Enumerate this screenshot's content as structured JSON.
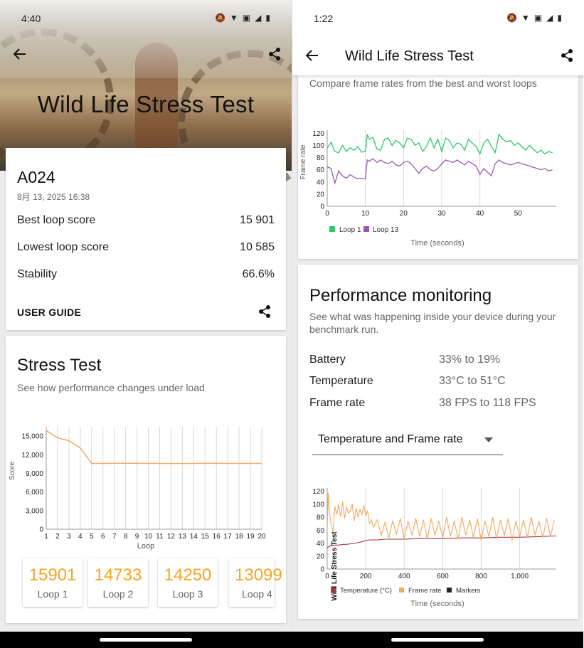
{
  "left": {
    "status_time": "4:40",
    "hero_title": "Wild Life Stress Test",
    "device": "A024",
    "date": "8月 13, 2025 16:38",
    "stats": [
      {
        "label": "Best loop score",
        "value": "15 901"
      },
      {
        "label": "Lowest loop score",
        "value": "10 585"
      },
      {
        "label": "Stability",
        "value": "66.6%"
      }
    ],
    "user_guide": "USER GUIDE",
    "stress_title": "Stress Test",
    "stress_sub": "See how performance changes under load",
    "loops": [
      {
        "value": "15901",
        "label": "Loop 1"
      },
      {
        "value": "14733",
        "label": "Loop 2"
      },
      {
        "value": "14250",
        "label": "Loop 3"
      },
      {
        "value": "13099",
        "label": "Loop 4"
      }
    ]
  },
  "right": {
    "status_time": "1:22",
    "title": "Wild Life Stress Test",
    "compare_sub": "Compare frame rates from the best and worst loops",
    "perf_title": "Performance monitoring",
    "perf_sub": "See what was happening inside your device during your benchmark run.",
    "perf_rows": [
      {
        "label": "Battery",
        "value": "33% to 19%"
      },
      {
        "label": "Temperature",
        "value": "33°C to 51°C"
      },
      {
        "label": "Frame rate",
        "value": "38 FPS to 118 FPS"
      }
    ],
    "dropdown_value": "Temperature and Frame rate"
  },
  "colors": {
    "accent": "#f5a623",
    "loop1": "#2ec866",
    "loop13": "#9b59b6",
    "temp": "#a0384a",
    "fps": "#f6a85e"
  },
  "chart_data": [
    {
      "type": "line",
      "title": "Stress Test",
      "xlabel": "Loop",
      "ylabel": "Score",
      "x": [
        1,
        2,
        3,
        4,
        5,
        6,
        7,
        8,
        9,
        10,
        11,
        12,
        13,
        14,
        15,
        16,
        17,
        18,
        19,
        20
      ],
      "series": [
        {
          "name": "Score",
          "values": [
            15901,
            14733,
            14250,
            13099,
            10585,
            10600,
            10610,
            10620,
            10610,
            10600,
            10600,
            10590,
            10590,
            10600,
            10610,
            10610,
            10600,
            10600,
            10600,
            10590
          ]
        }
      ],
      "yticks": [
        0,
        3000,
        6000,
        9000,
        12000,
        15000
      ],
      "ytick_labels": [
        "0",
        "3,000",
        "6,000",
        "9,000",
        "12,000",
        "15,000"
      ],
      "ylim": [
        0,
        16500
      ],
      "xlim": [
        1,
        20
      ]
    },
    {
      "type": "line",
      "title": "Compare frame rates from the best and worst loops",
      "xlabel": "Time (seconds)",
      "ylabel": "Frame rate",
      "xticks": [
        0,
        10,
        20,
        30,
        40,
        50
      ],
      "yticks": [
        0,
        20,
        40,
        60,
        80,
        100,
        120
      ],
      "xlim": [
        0,
        60
      ],
      "ylim": [
        0,
        125
      ],
      "markers": [
        10,
        20,
        30,
        40
      ],
      "series": [
        {
          "name": "Loop 1",
          "x": [
            0,
            1,
            2,
            3,
            4,
            5,
            6,
            7,
            8,
            9,
            10,
            10.5,
            11,
            12,
            13,
            14,
            15,
            16,
            17,
            18,
            19,
            20,
            21,
            22,
            23,
            24,
            25,
            26,
            27,
            28,
            29,
            30,
            31,
            32,
            33,
            34,
            35,
            36,
            37,
            38,
            39,
            40,
            41,
            42,
            43,
            44,
            45,
            46,
            47,
            48,
            49,
            50,
            51,
            52,
            53,
            54,
            55,
            56,
            57,
            58,
            59
          ],
          "values": [
            95,
            105,
            90,
            88,
            100,
            90,
            96,
            92,
            98,
            89,
            90,
            118,
            110,
            113,
            94,
            92,
            110,
            112,
            100,
            108,
            104,
            96,
            112,
            110,
            100,
            104,
            90,
            98,
            112,
            96,
            110,
            90,
            112,
            108,
            96,
            104,
            102,
            92,
            110,
            104,
            98,
            86,
            104,
            110,
            98,
            88,
            118,
            110,
            106,
            108,
            100,
            104,
            98,
            92,
            100,
            94,
            88,
            92,
            86,
            90,
            88
          ]
        },
        {
          "name": "Loop 13",
          "x": [
            0,
            1,
            2,
            3,
            4,
            5,
            6,
            7,
            8,
            9,
            10,
            10.5,
            11,
            12,
            13,
            14,
            15,
            16,
            17,
            18,
            19,
            20,
            21,
            22,
            23,
            24,
            25,
            26,
            27,
            28,
            29,
            30,
            31,
            32,
            33,
            34,
            35,
            36,
            37,
            38,
            39,
            40,
            41,
            42,
            43,
            44,
            45,
            46,
            47,
            48,
            49,
            50,
            51,
            52,
            53,
            54,
            55,
            56,
            57,
            58,
            59
          ],
          "values": [
            65,
            62,
            38,
            58,
            50,
            46,
            52,
            48,
            45,
            46,
            45,
            76,
            74,
            78,
            72,
            76,
            72,
            70,
            74,
            68,
            66,
            72,
            74,
            70,
            62,
            54,
            62,
            66,
            60,
            58,
            62,
            70,
            76,
            74,
            72,
            76,
            72,
            68,
            74,
            70,
            66,
            52,
            62,
            56,
            50,
            70,
            76,
            72,
            70,
            68,
            70,
            72,
            70,
            68,
            66,
            64,
            62,
            60,
            62,
            58,
            60
          ]
        }
      ]
    },
    {
      "type": "line",
      "title": "Temperature and Frame rate",
      "xlabel": "Time (seconds)",
      "xticks": [
        0,
        200,
        400,
        600,
        800,
        1000
      ],
      "xtick_labels": [
        "0",
        "200",
        "400",
        "600",
        "800",
        "1,000"
      ],
      "yticks": [
        0,
        20,
        40,
        60,
        80,
        100,
        120
      ],
      "xlim": [
        0,
        1190
      ],
      "ylim": [
        0,
        125
      ],
      "marker_label": "Wild Life Stress Test",
      "series": [
        {
          "name": "Temperature (°C)",
          "x": [
            0,
            20,
            40,
            60,
            80,
            100,
            150,
            180,
            200,
            220,
            260,
            300,
            400,
            500,
            600,
            700,
            800,
            900,
            1000,
            1100,
            1190
          ],
          "values": [
            33,
            36,
            37,
            37,
            38,
            38,
            40,
            42,
            44,
            45,
            45,
            46,
            46,
            47,
            47,
            48,
            48,
            49,
            49,
            50,
            51
          ]
        },
        {
          "name": "Frame rate",
          "x": [
            0,
            5,
            10,
            20,
            30,
            40,
            50,
            60,
            70,
            80,
            90,
            100,
            110,
            120,
            130,
            140,
            150,
            160,
            170,
            180,
            190,
            200,
            210,
            220,
            230,
            240,
            260,
            280,
            300,
            320,
            340,
            360,
            380,
            400,
            420,
            440,
            460,
            480,
            500,
            520,
            540,
            560,
            580,
            600,
            620,
            640,
            660,
            680,
            700,
            720,
            740,
            760,
            780,
            800,
            820,
            840,
            860,
            880,
            900,
            920,
            940,
            960,
            980,
            1000,
            1020,
            1040,
            1060,
            1080,
            1100,
            1120,
            1140,
            1160,
            1180
          ],
          "values": [
            60,
            118,
            92,
            70,
            58,
            96,
            84,
            100,
            80,
            104,
            78,
            96,
            86,
            90,
            100,
            74,
            94,
            80,
            92,
            84,
            98,
            82,
            90,
            70,
            76,
            64,
            76,
            52,
            72,
            48,
            74,
            54,
            78,
            46,
            74,
            52,
            78,
            50,
            76,
            46,
            78,
            52,
            74,
            48,
            80,
            50,
            74,
            46,
            80,
            52,
            76,
            48,
            78,
            44,
            74,
            50,
            80,
            46,
            76,
            52,
            78,
            44,
            74,
            50,
            76,
            48,
            80,
            52,
            74,
            48,
            78,
            50,
            76
          ]
        },
        {
          "name": "Markers",
          "values": []
        }
      ]
    }
  ]
}
